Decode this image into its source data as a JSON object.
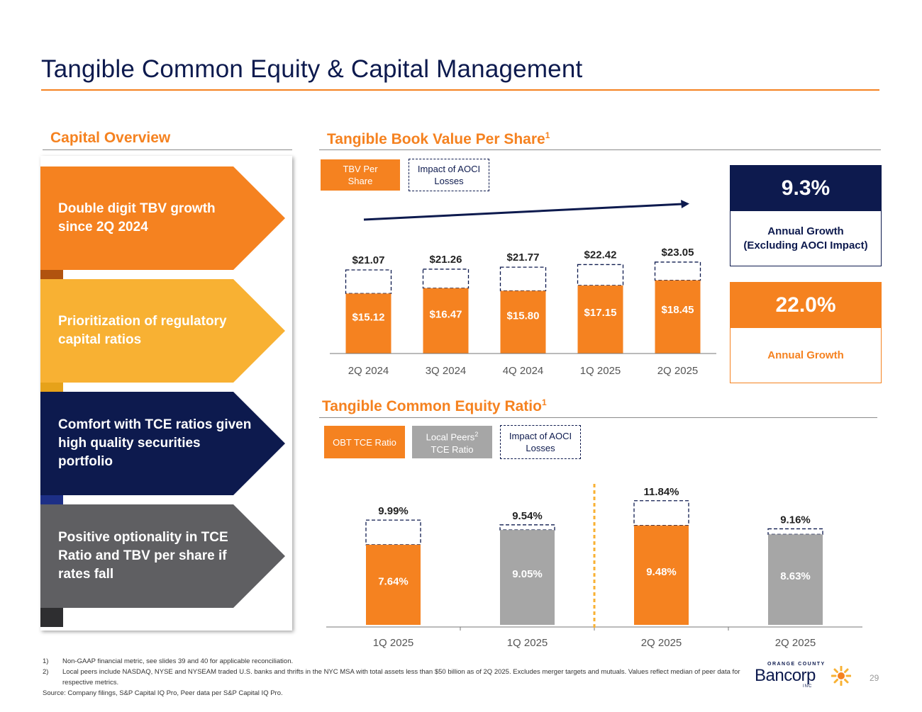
{
  "page": {
    "title": "Tangible Common Equity & Capital Management",
    "page_number": "29"
  },
  "colors": {
    "navy": "#0d1a4e",
    "orange": "#f58220",
    "gold": "#f8b133",
    "grey": "#a6a6a6",
    "dark_grey": "#5f5f62"
  },
  "capital_overview": {
    "heading": "Capital Overview",
    "items": [
      {
        "text": "Double digit TBV growth since 2Q 2024",
        "color": "#f58220",
        "tab": "#b1530f"
      },
      {
        "text": "Prioritization of regulatory capital ratios",
        "color": "#f8b133",
        "tab": "#e6a21a"
      },
      {
        "text": "Comfort with TCE ratios given high quality securities portfolio",
        "color": "#0d1a4e",
        "tab": "#1d2f86"
      },
      {
        "text": "Positive optionality in TCE Ratio and TBV per share if rates fall",
        "color": "#5f5f62",
        "tab": "#2e2e30"
      }
    ]
  },
  "tbv_section": {
    "heading": "Tangible Book Value Per Share",
    "heading_sup": "1",
    "legend": {
      "solid": "TBV Per Share",
      "dashed": "Impact of AOCI Losses"
    }
  },
  "tce_section": {
    "heading": "Tangible Common Equity Ratio",
    "heading_sup": "1",
    "legend": {
      "obt": "OBT TCE Ratio",
      "peers": "Local Peers",
      "peers_sup": "2",
      "peers_line2": "TCE Ratio",
      "dashed": "Impact of AOCI Losses"
    }
  },
  "kpis": {
    "excl_aoci": {
      "value": "9.3%",
      "label_line1": "Annual Growth",
      "label_line2": "(Excluding AOCI Impact)"
    },
    "annual": {
      "value": "22.0%",
      "label": "Annual Growth"
    }
  },
  "chart_data": [
    {
      "type": "bar",
      "title": "Tangible Book Value Per Share",
      "categories": [
        "2Q 2024",
        "3Q 2024",
        "4Q 2024",
        "1Q 2025",
        "2Q 2025"
      ],
      "series": [
        {
          "name": "TBV Per Share",
          "values": [
            15.12,
            16.47,
            15.8,
            17.15,
            18.45
          ],
          "labels": [
            "$15.12",
            "$16.47",
            "$15.80",
            "$17.15",
            "$18.45"
          ]
        },
        {
          "name": "Impact of AOCI Losses",
          "values": [
            5.95,
            4.79,
            5.97,
            5.27,
            4.6
          ]
        }
      ],
      "totals": [
        21.07,
        21.26,
        21.77,
        22.42,
        23.05
      ],
      "total_labels": [
        "$21.07",
        "$21.26",
        "$21.77",
        "$22.42",
        "$23.05"
      ],
      "stacked": true,
      "trend_arrow": true,
      "ylim": [
        0,
        26
      ]
    },
    {
      "type": "bar",
      "title": "Tangible Common Equity Ratio",
      "categories": [
        "1Q 2025",
        "1Q 2025",
        "2Q 2025",
        "2Q 2025"
      ],
      "groups": [
        "OBT",
        "Local Peers",
        "OBT",
        "Local Peers"
      ],
      "series": [
        {
          "name": "TCE Ratio",
          "values": [
            7.64,
            9.05,
            9.48,
            8.63
          ],
          "labels": [
            "7.64%",
            "9.05%",
            "9.48%",
            "8.63%"
          ]
        },
        {
          "name": "Impact of AOCI Losses",
          "values": [
            2.35,
            0.49,
            2.36,
            0.53
          ]
        }
      ],
      "totals": [
        9.99,
        9.54,
        11.84,
        9.16
      ],
      "total_labels": [
        "9.99%",
        "9.54%",
        "11.84%",
        "9.16%"
      ],
      "stacked": true,
      "period_divider_after_index": 1,
      "ylim": [
        0,
        14
      ]
    }
  ],
  "footnotes": [
    {
      "num": "1)",
      "text": "Non-GAAP financial metric, see slides 39 and 40 for applicable reconciliation."
    },
    {
      "num": "2)",
      "text": "Local peers include NASDAQ, NYSE and NYSEAM traded U.S. banks and thrifts in the NYC MSA with total assets less than $50 billion as of 2Q 2025. Excludes merger targets and mutuals. Values reflect median of peer data for respective metrics."
    }
  ],
  "source": "Source: Company filings, S&P Capital IQ Pro, Peer data per S&P Capital IQ Pro.",
  "logo": {
    "top": "ORANGE COUNTY",
    "main": "Bancorp",
    "inc": "INC"
  }
}
